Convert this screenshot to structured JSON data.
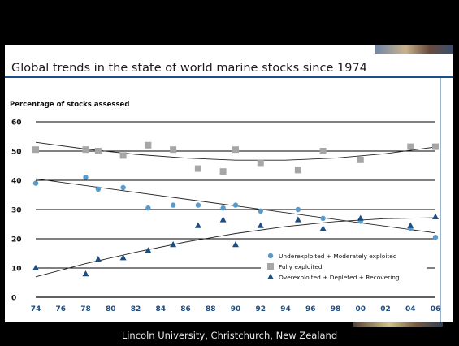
{
  "slide": {
    "title": "Global trends in the state of world marine stocks since 1974",
    "footer": "Lincoln University, Christchurch, New Zealand"
  },
  "chart_data": {
    "type": "scatter",
    "title": "",
    "ylabel": "Percentage of stocks assessed",
    "xlabel": "",
    "ylim": [
      0,
      60
    ],
    "yticks": [
      "0",
      "10",
      "20",
      "30",
      "40",
      "50",
      "60"
    ],
    "xlim": [
      1974,
      2006
    ],
    "xticks": [
      "74",
      "76",
      "78",
      "80",
      "82",
      "84",
      "86",
      "88",
      "90",
      "92",
      "94",
      "96",
      "98",
      "00",
      "02",
      "04",
      "06"
    ],
    "grid": "horizontal",
    "legend_position": "bottom-right",
    "series": [
      {
        "name": "Underexploited + Moderately exploited",
        "marker": "circle",
        "color": "#5a9bc9",
        "points": [
          [
            1974,
            39
          ],
          [
            1978,
            41
          ],
          [
            1979,
            37
          ],
          [
            1981,
            37.5
          ],
          [
            1983,
            30.5
          ],
          [
            1985,
            31.5
          ],
          [
            1987,
            31.5
          ],
          [
            1989,
            30.5
          ],
          [
            1990,
            31.5
          ],
          [
            1992,
            29.5
          ],
          [
            1995,
            30
          ],
          [
            1997,
            27
          ],
          [
            2000,
            26
          ],
          [
            2004,
            23.5
          ],
          [
            2006,
            20.5
          ]
        ],
        "trend": [
          [
            1974,
            40.5
          ],
          [
            2006,
            22
          ]
        ]
      },
      {
        "name": "Fully exploited",
        "marker": "square",
        "color": "#a6a6a6",
        "points": [
          [
            1974,
            50.5
          ],
          [
            1978,
            50.5
          ],
          [
            1979,
            50
          ],
          [
            1981,
            48.5
          ],
          [
            1983,
            52
          ],
          [
            1985,
            50.5
          ],
          [
            1987,
            44
          ],
          [
            1989,
            43
          ],
          [
            1990,
            50.5
          ],
          [
            1992,
            46
          ],
          [
            1995,
            43.5
          ],
          [
            1997,
            50
          ],
          [
            2000,
            47
          ],
          [
            2004,
            51.5
          ],
          [
            2006,
            51.5
          ]
        ],
        "trend": [
          [
            1974,
            53
          ],
          [
            1978,
            50.7
          ],
          [
            1982,
            48.9
          ],
          [
            1986,
            47.6
          ],
          [
            1990,
            46.9
          ],
          [
            1994,
            46.9
          ],
          [
            1998,
            47.6
          ],
          [
            2002,
            49.1
          ],
          [
            2006,
            51.4
          ]
        ]
      },
      {
        "name": "Overexploited + Depleted + Recovering",
        "marker": "triangle",
        "color": "#1d4d82",
        "points": [
          [
            1974,
            10
          ],
          [
            1978,
            8
          ],
          [
            1979,
            13
          ],
          [
            1981,
            13.5
          ],
          [
            1983,
            16
          ],
          [
            1985,
            18
          ],
          [
            1987,
            24.5
          ],
          [
            1989,
            26.5
          ],
          [
            1990,
            18
          ],
          [
            1992,
            24.5
          ],
          [
            1995,
            26.5
          ],
          [
            1997,
            23.5
          ],
          [
            2000,
            27
          ],
          [
            2004,
            24.5
          ],
          [
            2006,
            27.5
          ]
        ],
        "trend": [
          [
            1974,
            7
          ],
          [
            1978,
            11.5
          ],
          [
            1982,
            15.4
          ],
          [
            1986,
            18.9
          ],
          [
            1990,
            21.8
          ],
          [
            1994,
            24.2
          ],
          [
            1998,
            25.9
          ],
          [
            2002,
            26.9
          ],
          [
            2006,
            27.2
          ]
        ]
      }
    ]
  }
}
